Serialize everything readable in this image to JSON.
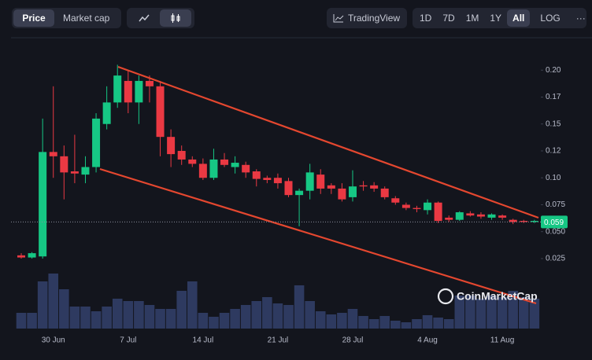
{
  "toolbar": {
    "tabs": [
      "Price",
      "Market cap"
    ],
    "tradingview": "TradingView",
    "ranges": [
      "1D",
      "7D",
      "1M",
      "1Y",
      "All"
    ],
    "log": "LOG",
    "more": "···"
  },
  "watermark": "CoinMarketCap",
  "chart_data": {
    "type": "candlestick",
    "categories": [
      null,
      null,
      null,
      "30 Jun",
      null,
      null,
      null,
      null,
      null,
      null,
      "7 Jul",
      null,
      null,
      null,
      null,
      null,
      null,
      "14 Jul",
      null,
      null,
      null,
      null,
      null,
      null,
      "21 Jul",
      null,
      null,
      null,
      null,
      null,
      null,
      "28 Jul",
      null,
      null,
      null,
      null,
      null,
      null,
      "4 Aug",
      null,
      null,
      null,
      null,
      null,
      null,
      "11 Aug",
      null,
      null,
      null
    ],
    "open": [
      0.028,
      0.026,
      0.027,
      0.124,
      0.12,
      0.106,
      0.103,
      0.11,
      0.15,
      0.17,
      0.19,
      0.17,
      0.19,
      0.185,
      0.138,
      0.125,
      0.117,
      0.113,
      0.1,
      0.117,
      0.11,
      0.112,
      0.106,
      0.1,
      0.1,
      0.097,
      0.084,
      0.088,
      0.103,
      0.093,
      0.09,
      0.082,
      0.093,
      0.093,
      0.09,
      0.081,
      0.075,
      0.072,
      0.07,
      0.077,
      0.063,
      0.061,
      0.067,
      0.066,
      0.063,
      0.065,
      0.061,
      0.06,
      0.059
    ],
    "high": [
      0.03,
      0.031,
      0.155,
      0.185,
      0.13,
      0.14,
      0.12,
      0.16,
      0.185,
      0.205,
      0.2,
      0.195,
      0.195,
      0.19,
      0.145,
      0.13,
      0.12,
      0.118,
      0.127,
      0.123,
      0.12,
      0.115,
      0.108,
      0.102,
      0.104,
      0.1,
      0.09,
      0.113,
      0.108,
      0.095,
      0.095,
      0.107,
      0.097,
      0.096,
      0.092,
      0.083,
      0.077,
      0.074,
      0.08,
      0.078,
      0.065,
      0.069,
      0.069,
      0.068,
      0.067,
      0.066,
      0.062,
      0.061,
      0.061
    ],
    "low": [
      0.025,
      0.025,
      0.025,
      0.1,
      0.08,
      0.095,
      0.095,
      0.105,
      0.145,
      0.165,
      0.16,
      0.15,
      0.17,
      0.12,
      0.11,
      0.112,
      0.11,
      0.098,
      0.098,
      0.11,
      0.104,
      0.1,
      0.092,
      0.095,
      0.09,
      0.082,
      0.055,
      0.08,
      0.085,
      0.085,
      0.078,
      0.078,
      0.088,
      0.087,
      0.08,
      0.075,
      0.07,
      0.068,
      0.066,
      0.058,
      0.059,
      0.06,
      0.064,
      0.062,
      0.061,
      0.061,
      0.057,
      0.058,
      0.058
    ],
    "close": [
      0.026,
      0.03,
      0.124,
      0.12,
      0.105,
      0.104,
      0.11,
      0.155,
      0.17,
      0.195,
      0.17,
      0.19,
      0.185,
      0.138,
      0.122,
      0.117,
      0.113,
      0.1,
      0.117,
      0.112,
      0.114,
      0.105,
      0.099,
      0.098,
      0.095,
      0.084,
      0.088,
      0.105,
      0.09,
      0.09,
      0.08,
      0.092,
      0.092,
      0.09,
      0.082,
      0.077,
      0.072,
      0.071,
      0.077,
      0.06,
      0.061,
      0.068,
      0.065,
      0.064,
      0.066,
      0.063,
      0.059,
      0.059,
      0.06
    ],
    "volumes": [
      20,
      20,
      60,
      70,
      50,
      28,
      28,
      22,
      28,
      38,
      35,
      35,
      30,
      25,
      25,
      48,
      60,
      20,
      15,
      20,
      25,
      30,
      35,
      40,
      32,
      30,
      55,
      35,
      22,
      18,
      20,
      25,
      16,
      12,
      16,
      10,
      8,
      12,
      17,
      14,
      12,
      42,
      42,
      38,
      42,
      40,
      48,
      40,
      38
    ],
    "up_color": "#16c784",
    "down_color": "#ea3943",
    "volume_color": "#2e3a60",
    "ylim": [
      -0.04,
      0.225
    ],
    "yticks": [
      {
        "value": 0.025,
        "label": "0.025"
      },
      {
        "value": 0.05,
        "label": "0.050"
      },
      {
        "value": 0.075,
        "label": "0.075"
      },
      {
        "value": 0.1,
        "label": "0.10"
      },
      {
        "value": 0.125,
        "label": "0.12"
      },
      {
        "value": 0.15,
        "label": "0.15"
      },
      {
        "value": 0.175,
        "label": "0.17"
      },
      {
        "value": 0.2,
        "label": "0.20"
      }
    ],
    "last_price": 0.059
  }
}
